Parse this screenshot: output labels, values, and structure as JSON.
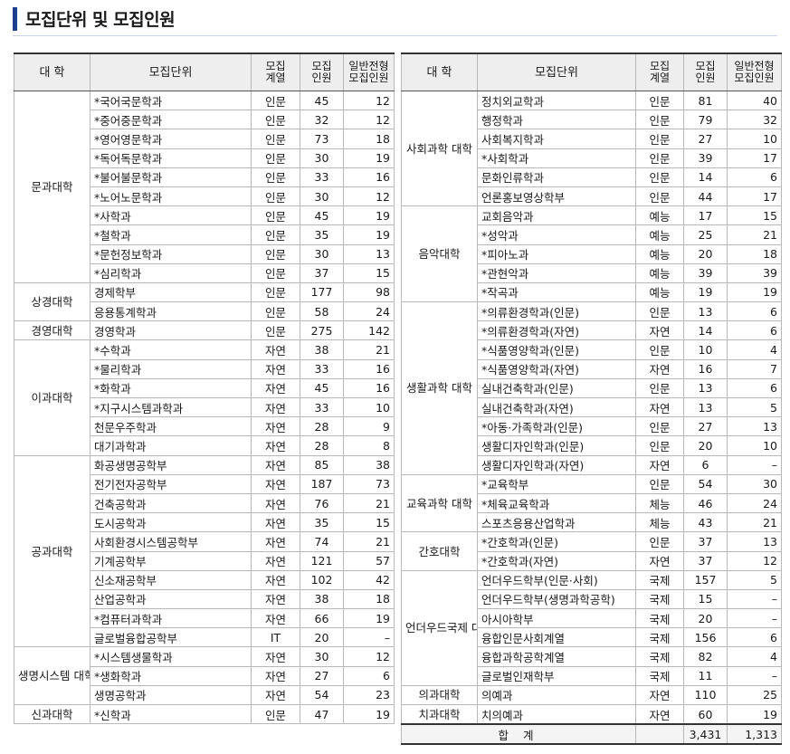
{
  "page": {
    "title": "모집단위 및 모집인원"
  },
  "headers": {
    "college": "대  학",
    "unit": "모집단위",
    "field_1": "모집",
    "field_2": "계열",
    "quota_1": "모집",
    "quota_2": "인원",
    "general_1": "일반전형",
    "general_2": "모집인원"
  },
  "left": [
    {
      "college": "문과대학",
      "span": 10,
      "unit": "*국어국문학과",
      "field": "인문",
      "quota": "45",
      "general": "12"
    },
    {
      "unit": "*중어중문학과",
      "field": "인문",
      "quota": "32",
      "general": "12"
    },
    {
      "unit": "*영어영문학과",
      "field": "인문",
      "quota": "73",
      "general": "18"
    },
    {
      "unit": "*독어독문학과",
      "field": "인문",
      "quota": "30",
      "general": "19"
    },
    {
      "unit": "*불어불문학과",
      "field": "인문",
      "quota": "33",
      "general": "16"
    },
    {
      "unit": "*노어노문학과",
      "field": "인문",
      "quota": "30",
      "general": "12"
    },
    {
      "unit": "*사학과",
      "field": "인문",
      "quota": "45",
      "general": "19"
    },
    {
      "unit": "*철학과",
      "field": "인문",
      "quota": "35",
      "general": "19"
    },
    {
      "unit": "*문헌정보학과",
      "field": "인문",
      "quota": "30",
      "general": "13"
    },
    {
      "unit": "*심리학과",
      "field": "인문",
      "quota": "37",
      "general": "15"
    },
    {
      "college": "상경대학",
      "span": 2,
      "unit": "경제학부",
      "field": "인문",
      "quota": "177",
      "general": "98"
    },
    {
      "unit": "응용통계학과",
      "field": "인문",
      "quota": "58",
      "general": "24"
    },
    {
      "college": "경영대학",
      "span": 1,
      "unit": "경영학과",
      "field": "인문",
      "quota": "275",
      "general": "142"
    },
    {
      "college": "이과대학",
      "span": 6,
      "unit": "*수학과",
      "field": "자연",
      "quota": "38",
      "general": "21"
    },
    {
      "unit": "*물리학과",
      "field": "자연",
      "quota": "33",
      "general": "16"
    },
    {
      "unit": "*화학과",
      "field": "자연",
      "quota": "45",
      "general": "16"
    },
    {
      "unit": "*지구시스템과학과",
      "field": "자연",
      "quota": "33",
      "general": "10"
    },
    {
      "unit": "천문우주학과",
      "field": "자연",
      "quota": "28",
      "general": "9"
    },
    {
      "unit": "대기과학과",
      "field": "자연",
      "quota": "28",
      "general": "8"
    },
    {
      "college": "공과대학",
      "span": 10,
      "unit": "화공생명공학부",
      "field": "자연",
      "quota": "85",
      "general": "38"
    },
    {
      "unit": "전기전자공학부",
      "field": "자연",
      "quota": "187",
      "general": "73"
    },
    {
      "unit": "건축공학과",
      "field": "자연",
      "quota": "76",
      "general": "21"
    },
    {
      "unit": "도시공학과",
      "field": "자연",
      "quota": "35",
      "general": "15"
    },
    {
      "unit": "사회환경시스템공학부",
      "field": "자연",
      "quota": "74",
      "general": "21"
    },
    {
      "unit": "기계공학부",
      "field": "자연",
      "quota": "121",
      "general": "57"
    },
    {
      "unit": "신소재공학부",
      "field": "자연",
      "quota": "102",
      "general": "42"
    },
    {
      "unit": "산업공학과",
      "field": "자연",
      "quota": "38",
      "general": "18"
    },
    {
      "unit": "*컴퓨터과학과",
      "field": "자연",
      "quota": "66",
      "general": "19"
    },
    {
      "unit": "글로벌융합공학부",
      "field": "IT",
      "quota": "20",
      "general": "–"
    },
    {
      "college": "생명시스템 대학",
      "span": 3,
      "unit": "*시스템생물학과",
      "field": "자연",
      "quota": "30",
      "general": "12"
    },
    {
      "unit": "*생화학과",
      "field": "자연",
      "quota": "27",
      "general": "6"
    },
    {
      "unit": "생명공학과",
      "field": "자연",
      "quota": "54",
      "general": "23"
    },
    {
      "college": "신과대학",
      "span": 1,
      "unit": "*신학과",
      "field": "인문",
      "quota": "47",
      "general": "19"
    }
  ],
  "right": [
    {
      "college": "사회과학 대학",
      "span": 6,
      "unit": "정치외교학과",
      "field": "인문",
      "quota": "81",
      "general": "40"
    },
    {
      "unit": "행정학과",
      "field": "인문",
      "quota": "79",
      "general": "32"
    },
    {
      "unit": "사회복지학과",
      "field": "인문",
      "quota": "27",
      "general": "10"
    },
    {
      "unit": "*사회학과",
      "field": "인문",
      "quota": "39",
      "general": "17"
    },
    {
      "unit": "문화인류학과",
      "field": "인문",
      "quota": "14",
      "general": "6"
    },
    {
      "unit": "언론홍보영상학부",
      "field": "인문",
      "quota": "44",
      "general": "17"
    },
    {
      "college": "음악대학",
      "span": 5,
      "unit": "교회음악과",
      "field": "예능",
      "quota": "17",
      "general": "15"
    },
    {
      "unit": "*성악과",
      "field": "예능",
      "quota": "25",
      "general": "21"
    },
    {
      "unit": "*피아노과",
      "field": "예능",
      "quota": "20",
      "general": "18"
    },
    {
      "unit": "*관현악과",
      "field": "예능",
      "quota": "39",
      "general": "39"
    },
    {
      "unit": "*작곡과",
      "field": "예능",
      "quota": "19",
      "general": "19"
    },
    {
      "college": "생활과학 대학",
      "span": 9,
      "unit": "*의류환경학과(인문)",
      "field": "인문",
      "quota": "13",
      "general": "6"
    },
    {
      "unit": "*의류환경학과(자연)",
      "field": "자연",
      "quota": "14",
      "general": "6"
    },
    {
      "unit": "*식품영양학과(인문)",
      "field": "인문",
      "quota": "10",
      "general": "4"
    },
    {
      "unit": "*식품영양학과(자연)",
      "field": "자연",
      "quota": "16",
      "general": "7"
    },
    {
      "unit": "실내건축학과(인문)",
      "field": "인문",
      "quota": "13",
      "general": "6"
    },
    {
      "unit": "실내건축학과(자연)",
      "field": "자연",
      "quota": "13",
      "general": "5"
    },
    {
      "unit": "*아동·가족학과(인문)",
      "field": "인문",
      "quota": "27",
      "general": "13"
    },
    {
      "unit": "생활디자인학과(인문)",
      "field": "인문",
      "quota": "20",
      "general": "10"
    },
    {
      "unit": "생활디자인학과(자연)",
      "field": "자연",
      "quota": "6",
      "general": "–"
    },
    {
      "college": "교육과학 대학",
      "span": 3,
      "unit": "*교육학부",
      "field": "인문",
      "quota": "54",
      "general": "30"
    },
    {
      "unit": "*체육교육학과",
      "field": "체능",
      "quota": "46",
      "general": "24"
    },
    {
      "unit": "스포츠응용산업학과",
      "field": "체능",
      "quota": "43",
      "general": "21"
    },
    {
      "college": "간호대학",
      "span": 2,
      "unit": "*간호학과(인문)",
      "field": "인문",
      "quota": "37",
      "general": "13"
    },
    {
      "unit": "*간호학과(자연)",
      "field": "자연",
      "quota": "37",
      "general": "12"
    },
    {
      "college": "언더우드국제 대학",
      "span": 6,
      "unit": "언더우드학부(인문·사회)",
      "field": "국제",
      "quota": "157",
      "general": "5"
    },
    {
      "unit": "언더우드학부(생명과학공학)",
      "field": "국제",
      "quota": "15",
      "general": "–"
    },
    {
      "unit": "아시아학부",
      "field": "국제",
      "quota": "20",
      "general": "–"
    },
    {
      "unit": "융합인문사회계열",
      "field": "국제",
      "quota": "156",
      "general": "6"
    },
    {
      "unit": "융합과학공학계열",
      "field": "국제",
      "quota": "82",
      "general": "4"
    },
    {
      "unit": "글로벌인재학부",
      "field": "국제",
      "quota": "11",
      "general": "–"
    },
    {
      "college": "의과대학",
      "span": 1,
      "unit": "의예과",
      "field": "자연",
      "quota": "110",
      "general": "25"
    },
    {
      "college": "치과대학",
      "span": 1,
      "unit": "치의예과",
      "field": "자연",
      "quota": "60",
      "general": "19"
    }
  ],
  "total": {
    "label": "합 계",
    "quota": "3,431",
    "general": "1,313"
  }
}
